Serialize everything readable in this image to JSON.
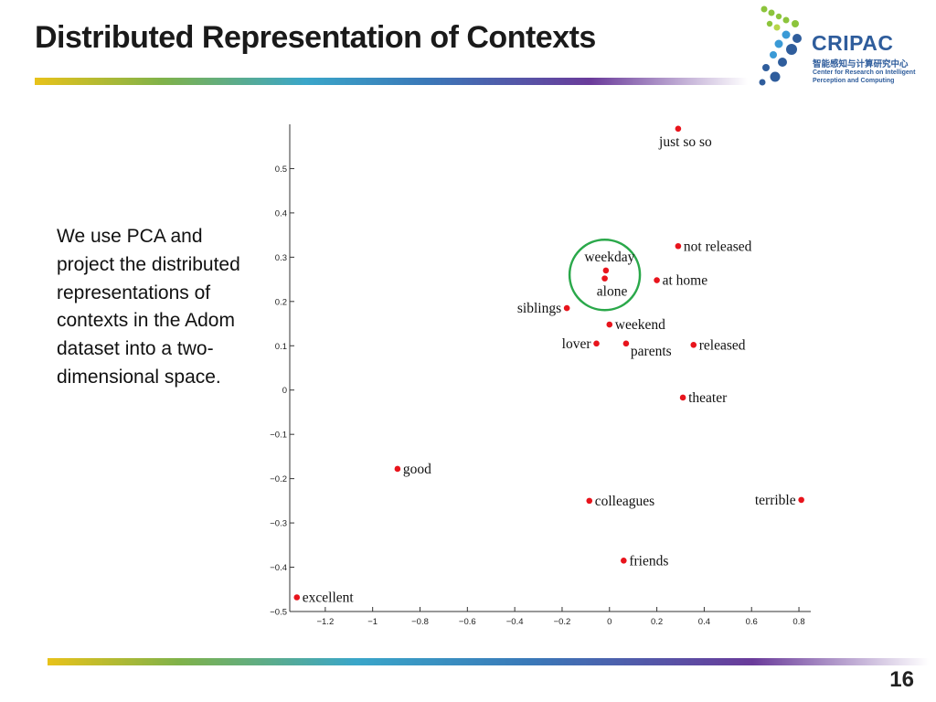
{
  "slide": {
    "title": "Distributed Representation of Contexts",
    "body": "We use PCA and project the distributed representations of contexts in the Adom dataset into a two-dimensional space.",
    "page_number": "16"
  },
  "logo": {
    "name": "CRIPAC",
    "chinese": "智能感知与计算研究中心",
    "english_line1": "Center for Research on Intelligent",
    "english_line2": "Perception and Computing",
    "color": "#2f5d9c"
  },
  "colors": {
    "point": "#e8141c",
    "highlight_circle": "#2aa84a"
  },
  "chart_data": {
    "type": "scatter",
    "title": "",
    "xlabel": "",
    "ylabel": "",
    "xlim": [
      -1.35,
      0.85
    ],
    "ylim": [
      -0.5,
      0.6
    ],
    "xticks": [
      -1.2,
      -1,
      -0.8,
      -0.6,
      -0.4,
      -0.2,
      0,
      0.2,
      0.4,
      0.6,
      0.8
    ],
    "xtick_labels": [
      "−1.2",
      "−1",
      "−0.8",
      "−0.6",
      "−0.4",
      "−0.2",
      "0",
      "0.2",
      "0.4",
      "0.6",
      "0.8"
    ],
    "yticks": [
      0.5,
      0.4,
      0.3,
      0.2,
      0.1,
      0,
      -0.1,
      -0.2,
      -0.3,
      -0.4,
      -0.5
    ],
    "ytick_labels": [
      "0.5",
      "0.4",
      "0.3",
      "0.2",
      "0.1",
      "0",
      "−0.1",
      "−0.2",
      "−0.3",
      "−0.4",
      "−0.5"
    ],
    "grid": false,
    "points": [
      {
        "label": "just so so",
        "x": 0.29,
        "y": 0.59,
        "anchor": "below"
      },
      {
        "label": "not released",
        "x": 0.29,
        "y": 0.325,
        "anchor": "right"
      },
      {
        "label": "weekday",
        "x": -0.015,
        "y": 0.27,
        "anchor": "above"
      },
      {
        "label": "alone",
        "x": -0.02,
        "y": 0.252,
        "anchor": "below"
      },
      {
        "label": "at home",
        "x": 0.2,
        "y": 0.248,
        "anchor": "right"
      },
      {
        "label": "siblings",
        "x": -0.18,
        "y": 0.185,
        "anchor": "left"
      },
      {
        "label": "weekend",
        "x": 0.0,
        "y": 0.148,
        "anchor": "right"
      },
      {
        "label": "lover",
        "x": -0.055,
        "y": 0.105,
        "anchor": "left"
      },
      {
        "label": "parents",
        "x": 0.07,
        "y": 0.105,
        "anchor": "below-right"
      },
      {
        "label": "released",
        "x": 0.355,
        "y": 0.102,
        "anchor": "right"
      },
      {
        "label": "theater",
        "x": 0.31,
        "y": -0.017,
        "anchor": "right"
      },
      {
        "label": "good",
        "x": -0.895,
        "y": -0.178,
        "anchor": "right"
      },
      {
        "label": "colleagues",
        "x": -0.085,
        "y": -0.25,
        "anchor": "right"
      },
      {
        "label": "terrible",
        "x": 0.81,
        "y": -0.248,
        "anchor": "left"
      },
      {
        "label": "friends",
        "x": 0.06,
        "y": -0.385,
        "anchor": "right"
      },
      {
        "label": "excellent",
        "x": -1.32,
        "y": -0.468,
        "anchor": "right"
      }
    ],
    "highlight": {
      "cx": -0.02,
      "cy": 0.26,
      "r": 0.165
    }
  }
}
